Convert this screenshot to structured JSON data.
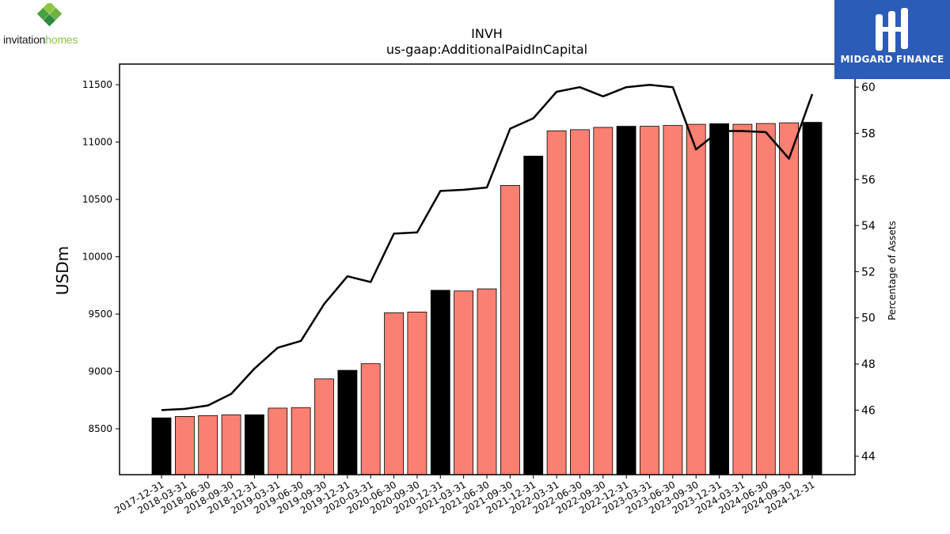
{
  "logos": {
    "left_brand_part1": "invitation",
    "left_brand_part2": "homes",
    "right_brand": "MIDGARD FINANCE"
  },
  "colors": {
    "bar_highlight": "#000000",
    "bar_default": "#fa8072",
    "line": "#000000",
    "brand_blue": "#2b5cb8",
    "brand_green": "#8cc63f"
  },
  "chart_data": {
    "type": "bar",
    "title": "INVH",
    "subtitle": "us-gaap:AdditionalPaidInCapital",
    "ylabel": "USDm",
    "y2label": "Percentage of Assets",
    "ylim": [
      8100,
      11680
    ],
    "y2lim": [
      43.2,
      61.0
    ],
    "yticks": [
      8500,
      9000,
      9500,
      10000,
      10500,
      11000,
      11500
    ],
    "y2ticks": [
      44,
      46,
      48,
      50,
      52,
      54,
      56,
      58,
      60
    ],
    "categories": [
      "2017-12-31",
      "2018-03-31",
      "2018-06-30",
      "2018-09-30",
      "2018-12-31",
      "2019-03-31",
      "2019-06-30",
      "2019-09-30",
      "2019-12-31",
      "2020-03-31",
      "2020-06-30",
      "2020-09-30",
      "2020-12-31",
      "2021-03-31",
      "2021-06-30",
      "2021-09-30",
      "2021-12-31",
      "2022-03-31",
      "2022-06-30",
      "2022-09-30",
      "2022-12-31",
      "2023-03-31",
      "2023-06-30",
      "2023-09-30",
      "2023-12-31",
      "2024-03-31",
      "2024-06-30",
      "2024-09-30",
      "2024-12-31"
    ],
    "series": [
      {
        "type": "bar",
        "values": [
          8595,
          8608,
          8615,
          8622,
          8622,
          8680,
          8685,
          8935,
          9010,
          9068,
          9512,
          9518,
          9708,
          9702,
          9720,
          10622,
          10878,
          11098,
          11108,
          11128,
          11138,
          11138,
          11145,
          11155,
          11160,
          11155,
          11162,
          11168,
          11172
        ]
      },
      {
        "type": "line",
        "axis": "right",
        "values": [
          46.0,
          46.05,
          46.2,
          46.7,
          47.8,
          48.7,
          49.0,
          50.6,
          51.8,
          51.55,
          53.65,
          53.7,
          55.5,
          55.55,
          55.65,
          58.2,
          58.65,
          59.8,
          60.0,
          59.6,
          60.0,
          60.1,
          60.0,
          57.3,
          58.1,
          58.1,
          58.05,
          56.9,
          59.7
        ]
      }
    ],
    "highlighted_categories": [
      "2017-12-31",
      "2018-12-31",
      "2019-12-31",
      "2020-12-31",
      "2021-12-31",
      "2022-12-31",
      "2023-12-31",
      "2024-12-31"
    ]
  }
}
